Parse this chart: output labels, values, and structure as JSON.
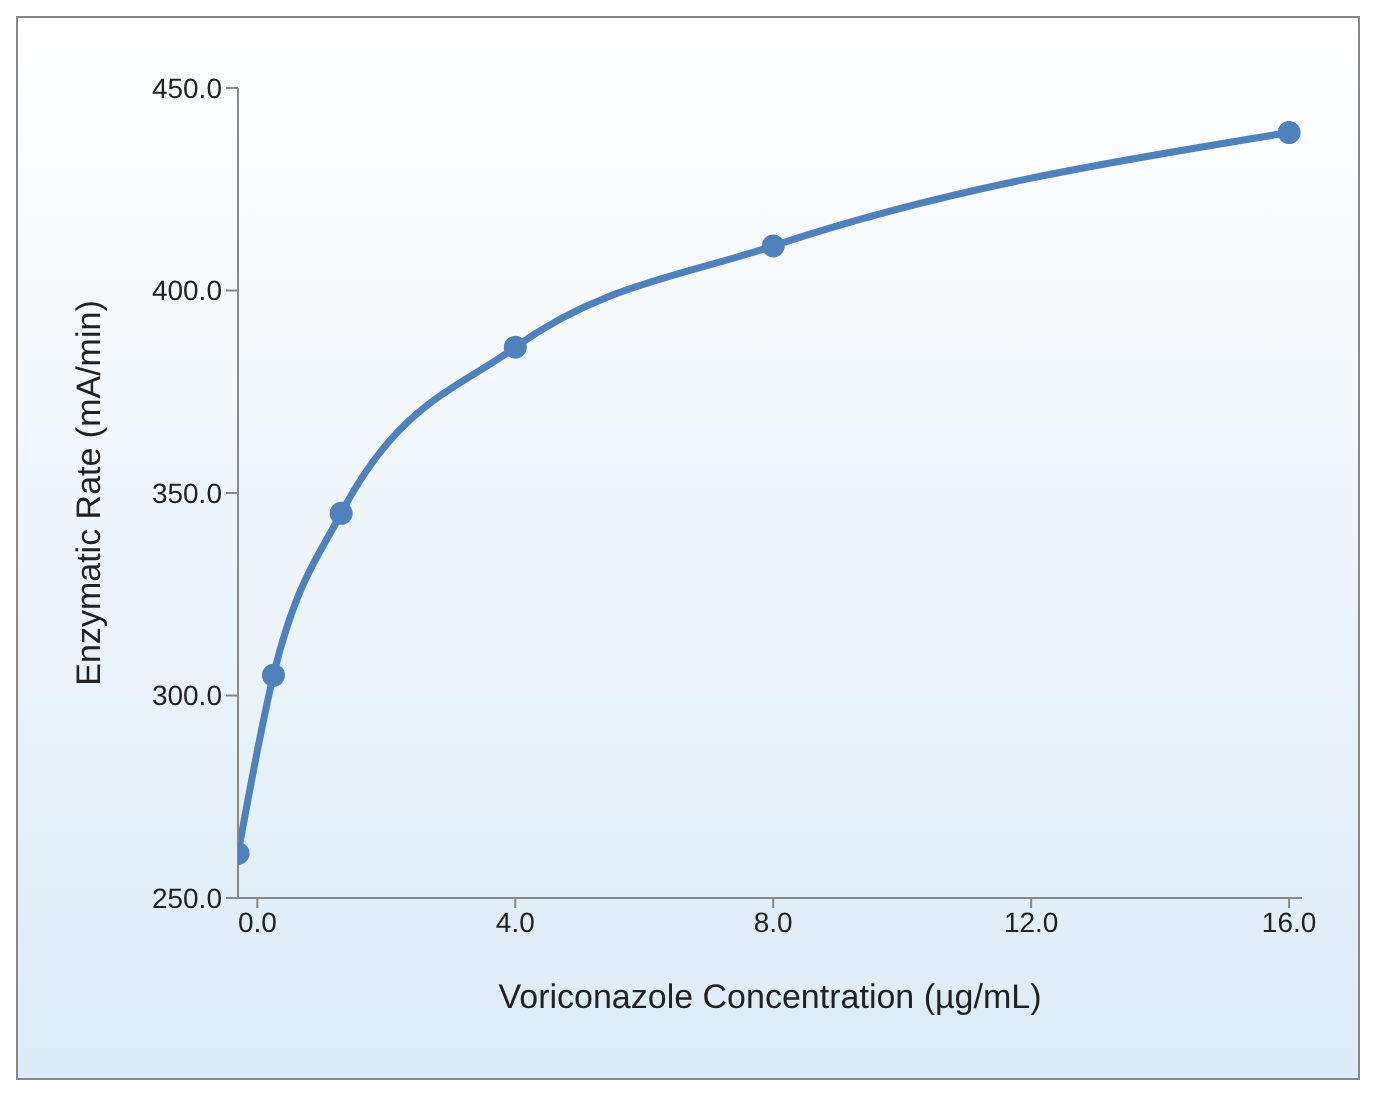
{
  "chart_data": {
    "type": "line",
    "xlabel": "Voriconazole Concentration (µg/mL)",
    "ylabel": "Enzymatic Rate (mA/min)",
    "x": [
      -0.3,
      0.25,
      1.3,
      4.0,
      8.0,
      16.0
    ],
    "series": [
      {
        "color": "#4f81bd",
        "values": [
          261,
          305,
          345,
          386,
          411,
          439
        ]
      }
    ],
    "xlim": [
      -0.3,
      16.2
    ],
    "xticks": [
      {
        "value": 0,
        "label": "0.0"
      },
      {
        "value": 4,
        "label": "4.0"
      },
      {
        "value": 8,
        "label": "8.0"
      },
      {
        "value": 12,
        "label": "12.0"
      },
      {
        "value": 16,
        "label": "16.0"
      }
    ],
    "ylim": [
      250,
      450
    ],
    "yticks": [
      {
        "value": 250,
        "label": "250.0"
      },
      {
        "value": 300,
        "label": "300.0"
      },
      {
        "value": 350,
        "label": "350.0"
      },
      {
        "value": 400,
        "label": "400.0"
      },
      {
        "value": 450,
        "label": "450.0"
      }
    ],
    "marker": "circle",
    "line_style": "solid"
  }
}
